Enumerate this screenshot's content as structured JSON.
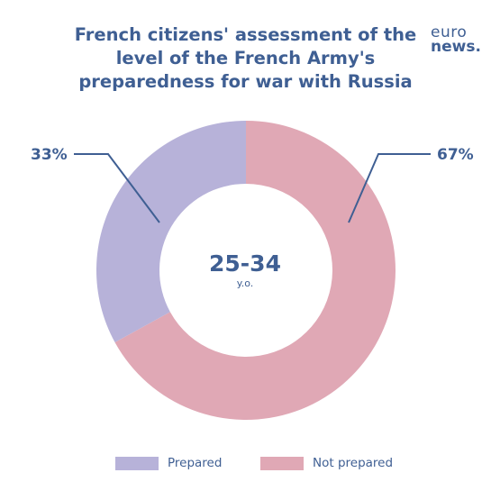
{
  "title_lines": [
    "French citizens' assessment of the",
    "level of the French Army's",
    "preparedness for war with Russia"
  ],
  "logo": {
    "line1": "euro",
    "line2": "news."
  },
  "center": {
    "big": "25-34",
    "small": "y.o."
  },
  "chart_data": {
    "type": "pie",
    "title": "French citizens' assessment of the level of the French Army's preparedness for war with Russia",
    "categories": [
      "Prepared",
      "Not prepared"
    ],
    "values": [
      33,
      67
    ],
    "value_labels": [
      "33%",
      "67%"
    ],
    "colors": [
      "#b7b2d9",
      "#e0a8b5"
    ],
    "center_label": "25-34 y.o.",
    "legend_placement": "bottom"
  },
  "legend": [
    {
      "label": "Prepared",
      "color": "#b7b2d9"
    },
    {
      "label": "Not prepared",
      "color": "#e0a8b5"
    }
  ],
  "line_color": "#3f5f93"
}
